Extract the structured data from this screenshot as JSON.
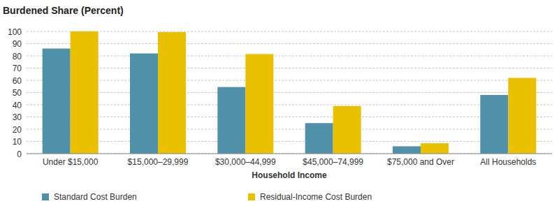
{
  "chart_data": {
    "type": "bar",
    "title": "Burdened Share (Percent)",
    "x_label": "Household Income",
    "categories": [
      "Under $15,000",
      "$15,000–29,999",
      "$30,000–44,999",
      "$45,000–74,999",
      "$75,000 and Over",
      "All Households"
    ],
    "series": [
      {
        "name": "Standard Cost Burden",
        "color": "#5190a9",
        "values": [
          86,
          82,
          54.5,
          25,
          6,
          48
        ]
      },
      {
        "name": "Residual-Income Cost Burden",
        "color": "#e9c100",
        "values": [
          100,
          99.5,
          81.5,
          39,
          8.5,
          62
        ]
      }
    ],
    "ylim": [
      0,
      100
    ],
    "yticks": [
      0,
      10,
      20,
      30,
      40,
      50,
      60,
      70,
      80,
      90,
      100
    ],
    "grid": true,
    "legend": "bottom"
  }
}
